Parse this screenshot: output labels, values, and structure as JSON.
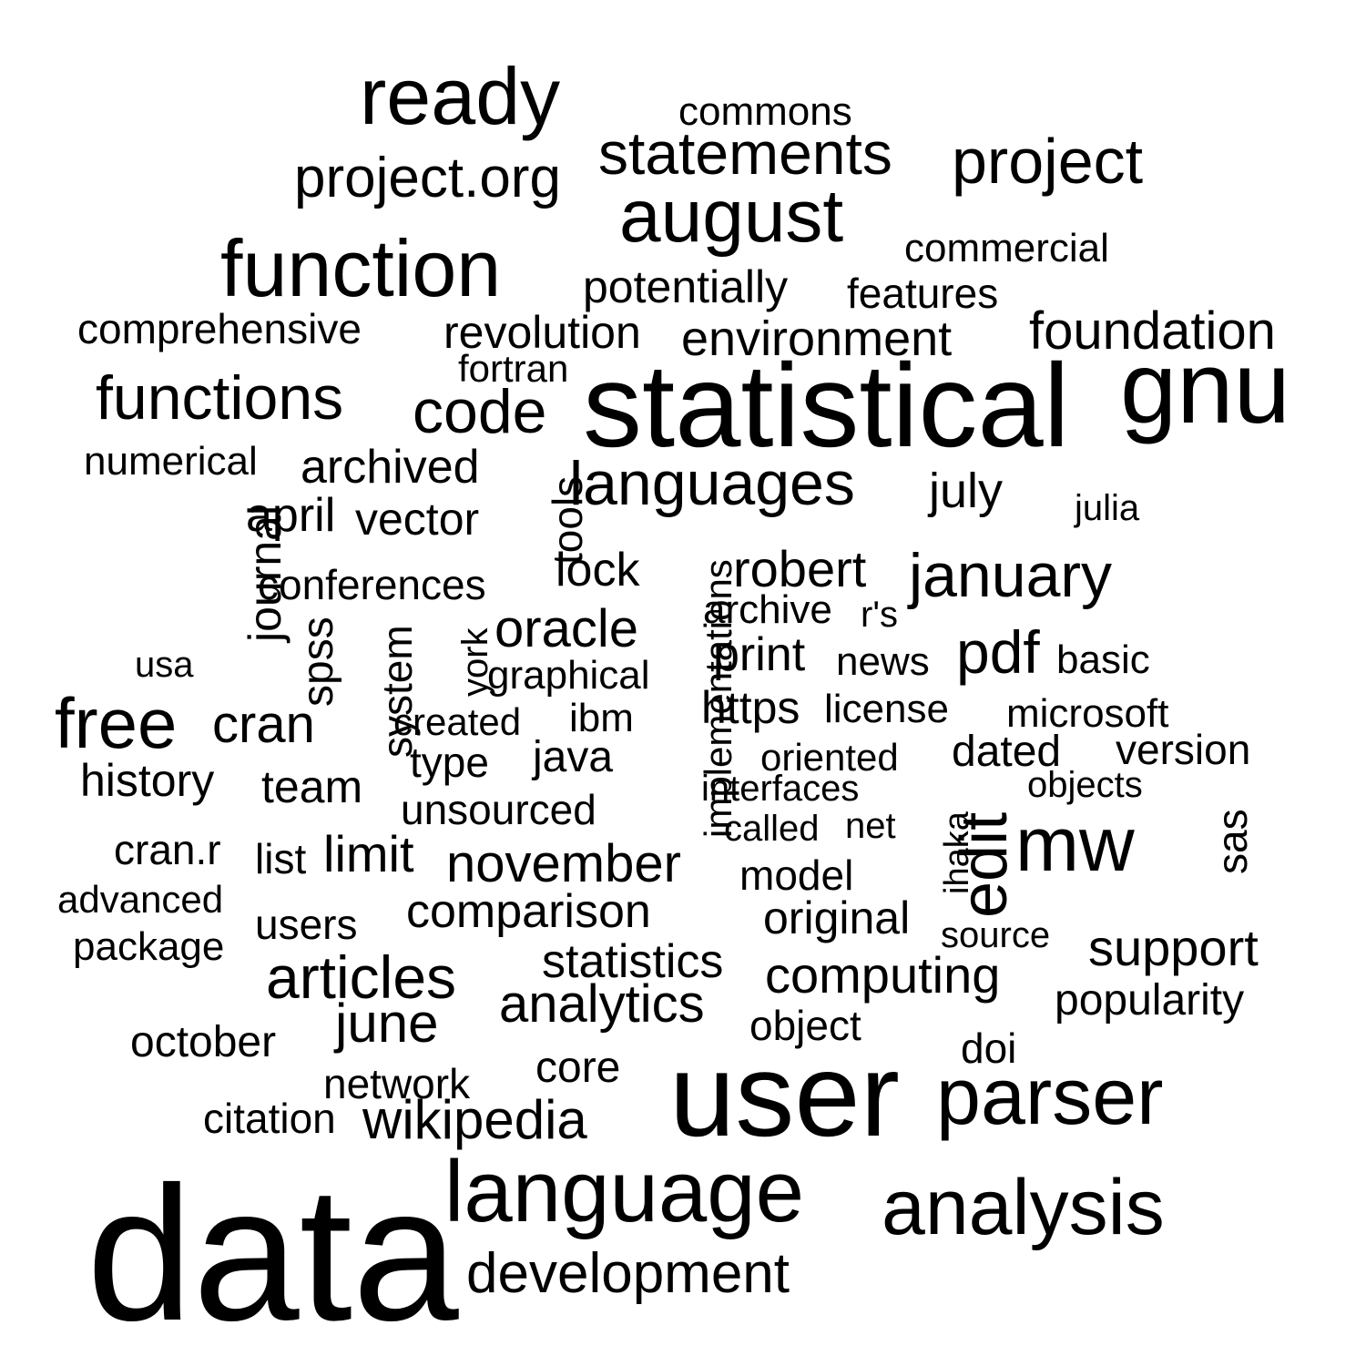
{
  "words": [
    {
      "text": "data",
      "vertical": false
    },
    {
      "text": "user",
      "vertical": false
    },
    {
      "text": "statistical",
      "vertical": false
    },
    {
      "text": "gnu",
      "vertical": false
    },
    {
      "text": "language",
      "vertical": false
    },
    {
      "text": "analysis",
      "vertical": false
    },
    {
      "text": "ready",
      "vertical": false
    },
    {
      "text": "function",
      "vertical": false
    },
    {
      "text": "august",
      "vertical": false
    },
    {
      "text": "parser",
      "vertical": false
    },
    {
      "text": "mw",
      "vertical": false
    },
    {
      "text": "edit",
      "vertical": true
    },
    {
      "text": "project",
      "vertical": false
    },
    {
      "text": "statements",
      "vertical": false
    },
    {
      "text": "languages",
      "vertical": false
    },
    {
      "text": "functions",
      "vertical": false
    },
    {
      "text": "free",
      "vertical": false
    },
    {
      "text": "articles",
      "vertical": false
    },
    {
      "text": "code",
      "vertical": false
    },
    {
      "text": "january",
      "vertical": false
    },
    {
      "text": "development",
      "vertical": false
    },
    {
      "text": "project.org",
      "vertical": false
    },
    {
      "text": "foundation",
      "vertical": false
    },
    {
      "text": "pdf",
      "vertical": false
    },
    {
      "text": "november",
      "vertical": false
    },
    {
      "text": "wikipedia",
      "vertical": false
    },
    {
      "text": "analytics",
      "vertical": false
    },
    {
      "text": "computing",
      "vertical": false
    },
    {
      "text": "support",
      "vertical": false
    },
    {
      "text": "june",
      "vertical": false
    },
    {
      "text": "cran",
      "vertical": false
    },
    {
      "text": "oracle",
      "vertical": false
    },
    {
      "text": "robert",
      "vertical": false
    },
    {
      "text": "environment",
      "vertical": false
    },
    {
      "text": "comparison",
      "vertical": false
    },
    {
      "text": "statistics",
      "vertical": false
    },
    {
      "text": "revolution",
      "vertical": false
    },
    {
      "text": "history",
      "vertical": false
    },
    {
      "text": "july",
      "vertical": false
    },
    {
      "text": "potentially",
      "vertical": false
    },
    {
      "text": "original",
      "vertical": false
    },
    {
      "text": "limit",
      "vertical": false
    },
    {
      "text": "conferences",
      "vertical": false
    },
    {
      "text": "archived",
      "vertical": false
    },
    {
      "text": "lock",
      "vertical": false
    },
    {
      "text": "april",
      "vertical": false
    },
    {
      "text": "vector",
      "vertical": false
    },
    {
      "text": "comprehensive",
      "vertical": false
    },
    {
      "text": "unsourced",
      "vertical": false
    },
    {
      "text": "october",
      "vertical": false
    },
    {
      "text": "print",
      "vertical": false
    },
    {
      "text": "team",
      "vertical": false
    },
    {
      "text": "commercial",
      "vertical": false
    },
    {
      "text": "features",
      "vertical": false
    },
    {
      "text": "commons",
      "vertical": false
    },
    {
      "text": "journal",
      "vertical": true
    },
    {
      "text": "implementations",
      "vertical": true
    },
    {
      "text": "tools",
      "vertical": true
    },
    {
      "text": "system",
      "vertical": true
    },
    {
      "text": "spss",
      "vertical": true
    },
    {
      "text": "york",
      "vertical": true
    },
    {
      "text": "ihaka",
      "vertical": true
    },
    {
      "text": "sas",
      "vertical": true
    },
    {
      "text": "https",
      "vertical": false
    },
    {
      "text": "java",
      "vertical": false
    },
    {
      "text": "license",
      "vertical": false
    },
    {
      "text": "core",
      "vertical": false
    },
    {
      "text": "type",
      "vertical": false
    },
    {
      "text": "version",
      "vertical": false
    },
    {
      "text": "popularity",
      "vertical": false
    },
    {
      "text": "dated",
      "vertical": false
    },
    {
      "text": "graphical",
      "vertical": false
    },
    {
      "text": "numerical",
      "vertical": false
    },
    {
      "text": "network",
      "vertical": false
    },
    {
      "text": "news",
      "vertical": false
    },
    {
      "text": "object",
      "vertical": false
    },
    {
      "text": "microsoft",
      "vertical": false
    },
    {
      "text": "archive",
      "vertical": false
    },
    {
      "text": "cran.r",
      "vertical": false
    },
    {
      "text": "citation",
      "vertical": false
    },
    {
      "text": "interfaces",
      "vertical": false
    },
    {
      "text": "model",
      "vertical": false
    },
    {
      "text": "fortran",
      "vertical": false
    },
    {
      "text": "created",
      "vertical": false
    },
    {
      "text": "basic",
      "vertical": false
    },
    {
      "text": "oriented",
      "vertical": false
    },
    {
      "text": "ibm",
      "vertical": false
    },
    {
      "text": "source",
      "vertical": false
    },
    {
      "text": "objects",
      "vertical": false
    },
    {
      "text": "users",
      "vertical": false
    },
    {
      "text": "doi",
      "vertical": false
    },
    {
      "text": "package",
      "vertical": false
    },
    {
      "text": "list",
      "vertical": false
    },
    {
      "text": "called",
      "vertical": false
    },
    {
      "text": "advanced",
      "vertical": false
    },
    {
      "text": "julia",
      "vertical": false
    },
    {
      "text": "usa",
      "vertical": false
    },
    {
      "text": "net",
      "vertical": false
    },
    {
      "text": "r's",
      "vertical": false
    }
  ]
}
